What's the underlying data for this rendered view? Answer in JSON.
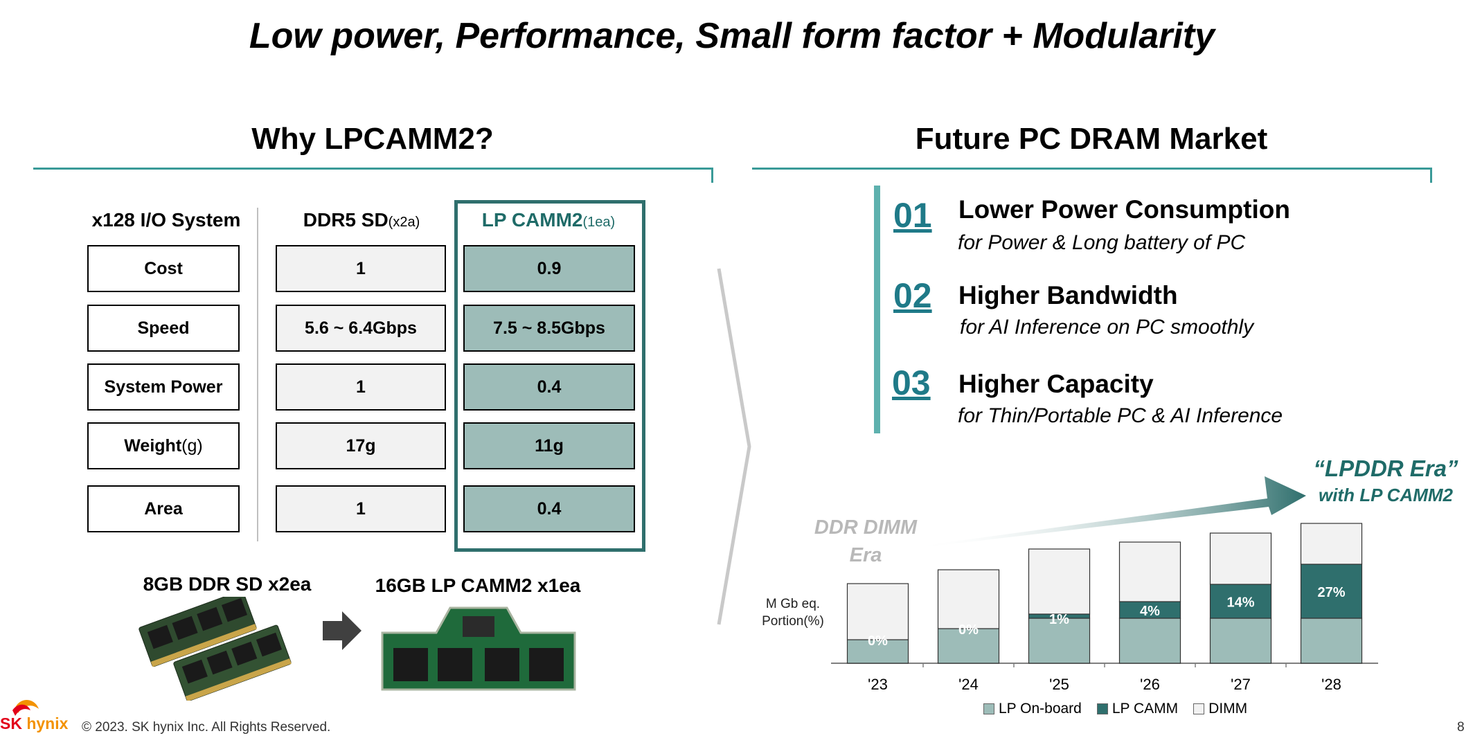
{
  "page": {
    "title": "Low power, Performance, Small form factor + Modularity",
    "page_number": "8"
  },
  "left": {
    "heading": "Why LPCAMM2?",
    "col_system": "x128 I/O System",
    "col_ddr": "DDR5 SD",
    "col_ddr_sub": "(x2a)",
    "col_lp": "LP CAMM2",
    "col_lp_sub": "(1ea)",
    "rows": [
      {
        "label": "Cost",
        "label_sub": "",
        "ddr": "1",
        "lp": "0.9"
      },
      {
        "label": "Speed",
        "label_sub": "",
        "ddr": "5.6 ~ 6.4Gbps",
        "lp": "7.5 ~ 8.5Gbps"
      },
      {
        "label": "System Power",
        "label_sub": "",
        "ddr": "1",
        "lp": "0.4"
      },
      {
        "label": "Weight",
        "label_sub": "(g)",
        "ddr": "17g",
        "lp": "11g"
      },
      {
        "label": "Area",
        "label_sub": "",
        "ddr": "1",
        "lp": "0.4"
      }
    ],
    "caption_ddr": "8GB DDR SD x2ea",
    "caption_lp": "16GB LP CAMM2 x1ea"
  },
  "right": {
    "heading": "Future PC DRAM Market",
    "features": [
      {
        "num": "01",
        "title": "Lower Power Consumption",
        "sub": "for Power & Long battery of  PC"
      },
      {
        "num": "02",
        "title": "Higher Bandwidth",
        "sub": "for AI Inference on PC smoothly"
      },
      {
        "num": "03",
        "title": "Higher Capacity",
        "sub": "for Thin/Portable PC & AI Inference"
      }
    ],
    "era_old_1": "DDR DIMM",
    "era_old_2": "Era",
    "era_new_1": "“LPDDR Era”",
    "era_new_2": "with LP CAMM2"
  },
  "chart_data": {
    "type": "bar",
    "stacked": true,
    "ylabel_1": "M Gb eq.",
    "ylabel_2": "Portion(%)",
    "categories": [
      "'23",
      "'24",
      "'25",
      "'26",
      "'27",
      "'28"
    ],
    "totals": [
      115,
      135,
      165,
      175,
      188,
      202
    ],
    "series": [
      {
        "name": "LP On-board",
        "values": [
          34,
          50,
          65,
          65,
          65,
          65
        ],
        "color": "#9dbcb8"
      },
      {
        "name": "LP CAMM",
        "values": [
          0,
          0,
          6,
          24,
          49,
          78
        ],
        "color": "#2f6f6d"
      },
      {
        "name": "DIMM",
        "values": [
          81,
          85,
          94,
          86,
          74,
          59
        ],
        "color": "#f2f2f2"
      }
    ],
    "labels": [
      "0%",
      "0%",
      "1%",
      "4%",
      "14%",
      "27%"
    ],
    "grid": false,
    "legend_position": "bottom"
  },
  "footer": {
    "logo_sk": "SK",
    "logo_hynix": "hynix",
    "copyright": "© 2023. SK hynix Inc. All Rights Reserved."
  },
  "colors": {
    "teal_line": "#3a9a98",
    "teal_dark": "#2f6f6d",
    "lp_fill": "#9dbcb8",
    "number_blue": "#1f7a88",
    "logo_red": "#e2001a",
    "logo_orange": "#f39200"
  }
}
